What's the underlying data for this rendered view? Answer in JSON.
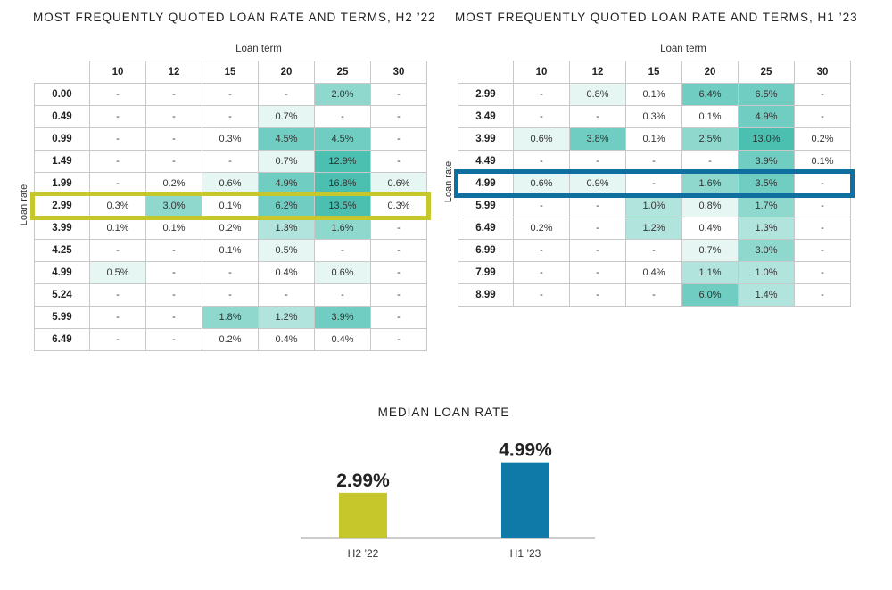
{
  "left": {
    "title": "MOST FREQUENTLY QUOTED LOAN RATE AND TERMS, H2 ’22",
    "term_label": "Loan term",
    "rate_label": "Loan rate",
    "highlight_color": "#c5c72b"
  },
  "right": {
    "title": "MOST FREQUENTLY QUOTED LOAN RATE AND TERMS, H1 ’23",
    "term_label": "Loan term",
    "rate_label": "Loan rate",
    "highlight_color": "#0f6f9e"
  },
  "bar": {
    "title": "MEDIAN LOAN RATE"
  },
  "chart_data": [
    {
      "type": "heatmap",
      "title": "MOST FREQUENTLY QUOTED LOAN RATE AND TERMS, H2 ’22",
      "xlabel": "Loan term",
      "ylabel": "Loan rate",
      "columns": [
        "10",
        "12",
        "15",
        "20",
        "25",
        "30"
      ],
      "rows": [
        "0.00",
        "0.49",
        "0.99",
        "1.49",
        "1.99",
        "2.99",
        "3.99",
        "4.25",
        "4.99",
        "5.24",
        "5.99",
        "6.49"
      ],
      "values": [
        [
          null,
          null,
          null,
          null,
          2.0,
          null
        ],
        [
          null,
          null,
          null,
          0.7,
          null,
          null
        ],
        [
          null,
          null,
          0.3,
          4.5,
          4.5,
          null
        ],
        [
          null,
          null,
          null,
          0.7,
          12.9,
          null
        ],
        [
          null,
          0.2,
          0.6,
          4.9,
          16.8,
          0.6
        ],
        [
          0.3,
          3.0,
          0.1,
          6.2,
          13.5,
          0.3
        ],
        [
          0.1,
          0.1,
          0.2,
          1.3,
          1.6,
          null
        ],
        [
          null,
          null,
          0.1,
          0.5,
          null,
          null
        ],
        [
          0.5,
          null,
          null,
          0.4,
          0.6,
          null
        ],
        [
          null,
          null,
          null,
          null,
          null,
          null
        ],
        [
          null,
          null,
          1.8,
          1.2,
          3.9,
          null
        ],
        [
          null,
          null,
          0.2,
          0.4,
          0.4,
          null
        ]
      ],
      "highlighted_row": "2.99"
    },
    {
      "type": "heatmap",
      "title": "MOST FREQUENTLY QUOTED LOAN RATE AND TERMS, H1 ’23",
      "xlabel": "Loan term",
      "ylabel": "Loan rate",
      "columns": [
        "10",
        "12",
        "15",
        "20",
        "25",
        "30"
      ],
      "rows": [
        "2.99",
        "3.49",
        "3.99",
        "4.49",
        "4.99",
        "5.99",
        "6.49",
        "6.99",
        "7.99",
        "8.99"
      ],
      "values": [
        [
          null,
          0.8,
          0.1,
          6.4,
          6.5,
          null
        ],
        [
          null,
          null,
          0.3,
          0.1,
          4.9,
          null
        ],
        [
          0.6,
          3.8,
          0.1,
          2.5,
          13.0,
          0.2
        ],
        [
          null,
          null,
          null,
          null,
          3.9,
          0.1
        ],
        [
          0.6,
          0.9,
          null,
          1.6,
          3.5,
          null
        ],
        [
          null,
          null,
          1.0,
          0.8,
          1.7,
          null
        ],
        [
          0.2,
          null,
          1.2,
          0.4,
          1.3,
          null
        ],
        [
          null,
          null,
          null,
          0.7,
          3.0,
          null
        ],
        [
          null,
          null,
          0.4,
          1.1,
          1.0,
          null
        ],
        [
          null,
          null,
          null,
          6.0,
          1.4,
          null
        ]
      ],
      "highlighted_row": "4.99"
    },
    {
      "type": "bar",
      "title": "MEDIAN LOAN RATE",
      "categories": [
        "H2 ’22",
        "H1 ’23"
      ],
      "values": [
        2.99,
        4.99
      ],
      "labels": [
        "2.99%",
        "4.99%"
      ],
      "colors": [
        "#c5c72b",
        "#0f7aa8"
      ]
    }
  ]
}
